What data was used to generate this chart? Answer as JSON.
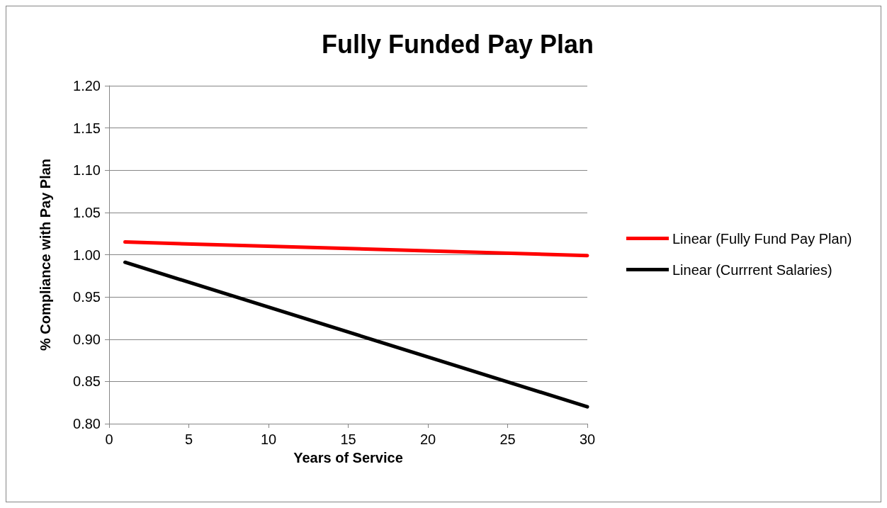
{
  "chart_data": {
    "type": "line",
    "title": "Fully Funded Pay Plan",
    "xlabel": "Years of Service",
    "ylabel": "% Compliance with Pay Plan",
    "x": [
      1,
      30
    ],
    "series": [
      {
        "name": "Linear (Fully Fund Pay Plan)",
        "color": "#ff0000",
        "values": [
          1.015,
          0.999
        ]
      },
      {
        "name": "Linear (Currrent Salaries)",
        "color": "#000000",
        "values": [
          0.991,
          0.82
        ]
      }
    ],
    "xlim": [
      0,
      30
    ],
    "xticks": [
      0,
      5,
      10,
      15,
      20,
      25,
      30
    ],
    "ylim": [
      0.8,
      1.2
    ],
    "yticks": [
      {
        "value": 0.8,
        "label": "0.80"
      },
      {
        "value": 0.85,
        "label": "0.85"
      },
      {
        "value": 0.9,
        "label": "0.90"
      },
      {
        "value": 0.95,
        "label": "0.95"
      },
      {
        "value": 1.0,
        "label": "1.00"
      },
      {
        "value": 1.05,
        "label": "1.05"
      },
      {
        "value": 1.1,
        "label": "1.10"
      },
      {
        "value": 1.15,
        "label": "1.15"
      },
      {
        "value": 1.2,
        "label": "1.20"
      }
    ],
    "grid": "y",
    "legend": "right",
    "marker": "none"
  }
}
